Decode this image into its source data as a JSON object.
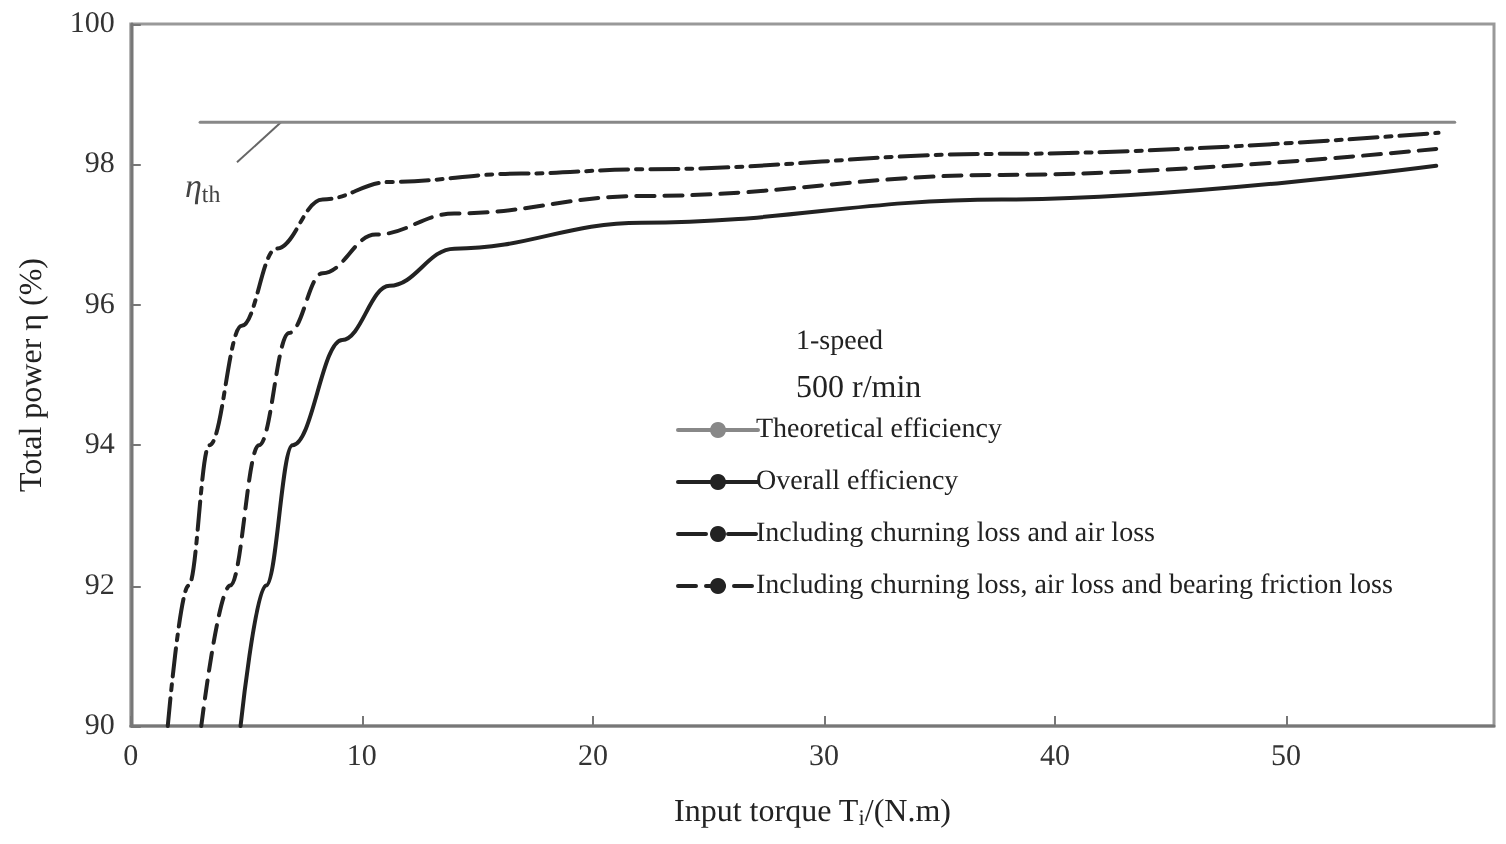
{
  "chart_data": {
    "type": "line",
    "xlabel": "Input torque T$_{i}$/(N.m)",
    "ylabel": "Total power η (%)",
    "xlim": [
      0,
      59
    ],
    "xticks": [
      0,
      10,
      20,
      30,
      40,
      50
    ],
    "ylim": [
      90,
      100
    ],
    "yticks": [
      90,
      92,
      94,
      96,
      98,
      100
    ],
    "grid": false,
    "legend": "center",
    "marker": "none",
    "annotations": [
      "1-speed",
      "500 r/min",
      {
        "text": "η$_{th}$",
        "x": 6.5,
        "y": 98.6
      }
    ],
    "series": [
      {
        "name": "Theoretical efficiency",
        "color": "#888888",
        "line_style": "solid",
        "x": [
          3.0,
          57.3
        ],
        "values": [
          98.6,
          98.6
        ]
      },
      {
        "name": "Overall efficiency",
        "color": "#222222",
        "line_style": "solid",
        "x": [
          4.75,
          5.85,
          7.0,
          9.15,
          11.2,
          14.0,
          22.1,
          37.7,
          56.5
        ],
        "values": [
          90,
          92,
          94,
          95.5,
          96.27,
          96.8,
          97.17,
          97.5,
          97.98
        ]
      },
      {
        "name": "Including churning loss and air loss",
        "color": "#222222",
        "line_style": "dashdot",
        "x": [
          1.6,
          2.5,
          3.4,
          4.8,
          6.3,
          8.3,
          11.2,
          16.9,
          22.1,
          37.7,
          56.6
        ],
        "values": [
          90,
          92,
          94,
          95.7,
          96.8,
          97.5,
          97.75,
          97.87,
          97.93,
          98.15,
          98.45
        ]
      },
      {
        "name": "Including churning loss, air loss and bearing friction loss",
        "color": "#222222",
        "line_style": "dashed",
        "x": [
          3.05,
          4.3,
          5.55,
          6.85,
          8.3,
          10.6,
          14.0,
          22.1,
          37.7,
          56.5
        ],
        "values": [
          90,
          92,
          94,
          95.6,
          96.45,
          97.0,
          97.3,
          97.55,
          97.85,
          98.22
        ]
      }
    ]
  }
}
